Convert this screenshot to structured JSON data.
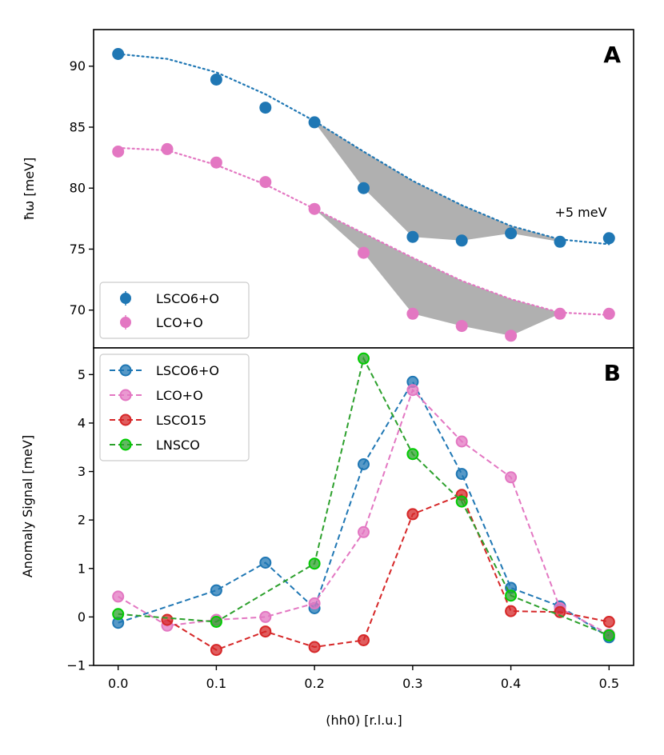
{
  "colors": {
    "lsco6": "#1f77b4",
    "lco": "#e377c2",
    "lsco15": "#d62728",
    "lnsco": "#2ca02c",
    "lnsco_edge": "#00cc00",
    "shade": "#b0b0b0"
  },
  "chart_data": [
    {
      "type": "scatter",
      "panel": "A",
      "ylabel": "ħω [meV]",
      "xlim": [
        -0.025,
        0.525
      ],
      "ylim": [
        66.9,
        93.0
      ],
      "yticks": [
        70,
        75,
        80,
        85,
        90
      ],
      "ytick_labels": [
        "70",
        "75",
        "80",
        "85",
        "90"
      ],
      "annotation": "+5 meV",
      "legend_position": "lower-left",
      "series": [
        {
          "name": "LSCO6+O",
          "color_key": "lsco6",
          "x": [
            0.0,
            0.1,
            0.15,
            0.2,
            0.25,
            0.3,
            0.35,
            0.4,
            0.45,
            0.5
          ],
          "y": [
            91.0,
            88.9,
            86.6,
            85.4,
            80.0,
            76.0,
            75.7,
            76.3,
            75.6,
            75.9
          ],
          "fit_x": [
            0.0,
            0.05,
            0.1,
            0.15,
            0.2,
            0.25,
            0.3,
            0.35,
            0.4,
            0.45,
            0.5
          ],
          "fit_y": [
            91.0,
            90.6,
            89.5,
            87.7,
            85.5,
            83.0,
            80.6,
            78.6,
            76.9,
            75.8,
            75.4
          ]
        },
        {
          "name": "LCO+O",
          "color_key": "lco",
          "x": [
            0.0,
            0.05,
            0.1,
            0.15,
            0.2,
            0.25,
            0.3,
            0.35,
            0.4,
            0.45,
            0.5
          ],
          "y": [
            83.0,
            83.2,
            82.1,
            80.5,
            78.3,
            74.7,
            69.7,
            68.7,
            67.9,
            69.7,
            69.7
          ],
          "fit_x": [
            0.0,
            0.05,
            0.1,
            0.15,
            0.2,
            0.25,
            0.3,
            0.35,
            0.4,
            0.45,
            0.5
          ],
          "fit_y": [
            83.3,
            83.1,
            81.9,
            80.3,
            78.3,
            76.3,
            74.3,
            72.4,
            70.9,
            69.8,
            69.6
          ]
        }
      ],
      "shaded_regions": [
        {
          "series": "LSCO6+O",
          "points_x": [
            0.2,
            0.25,
            0.3,
            0.35,
            0.4,
            0.45
          ],
          "points_y": [
            85.4,
            80.0,
            76.0,
            75.7,
            76.3,
            75.6
          ]
        },
        {
          "series": "LCO+O",
          "points_x": [
            0.2,
            0.25,
            0.3,
            0.35,
            0.4,
            0.45
          ],
          "points_y": [
            78.3,
            74.7,
            69.7,
            68.7,
            67.9,
            69.7
          ]
        }
      ]
    },
    {
      "type": "line",
      "panel": "B",
      "xlabel": "(hh0) [r.l.u.]",
      "ylabel": "Anomaly Signal [meV]",
      "xlim": [
        -0.025,
        0.525
      ],
      "ylim": [
        -1.0,
        5.55
      ],
      "xticks": [
        0.0,
        0.1,
        0.2,
        0.3,
        0.4,
        0.5
      ],
      "xtick_labels": [
        "0.0",
        "0.1",
        "0.2",
        "0.3",
        "0.4",
        "0.5"
      ],
      "yticks": [
        -1,
        0,
        1,
        2,
        3,
        4,
        5
      ],
      "ytick_labels": [
        "−1",
        "0",
        "1",
        "2",
        "3",
        "4",
        "5"
      ],
      "legend_position": "upper-left",
      "series": [
        {
          "name": "LSCO6+O",
          "color_key": "lsco6",
          "x": [
            0.0,
            0.1,
            0.15,
            0.2,
            0.25,
            0.3,
            0.35,
            0.4,
            0.45,
            0.5
          ],
          "y": [
            -0.12,
            0.55,
            1.12,
            0.18,
            3.15,
            4.85,
            2.95,
            0.6,
            0.22,
            -0.42
          ]
        },
        {
          "name": "LCO+O",
          "color_key": "lco",
          "x": [
            0.0,
            0.05,
            0.1,
            0.15,
            0.2,
            0.25,
            0.3,
            0.35,
            0.4,
            0.45,
            0.5
          ],
          "y": [
            0.42,
            -0.18,
            -0.06,
            0.0,
            0.28,
            1.75,
            4.68,
            3.62,
            2.88,
            0.18,
            -0.36
          ]
        },
        {
          "name": "LSCO15",
          "color_key": "lsco15",
          "x": [
            0.05,
            0.1,
            0.15,
            0.2,
            0.25,
            0.3,
            0.35,
            0.4,
            0.45,
            0.5
          ],
          "y": [
            -0.06,
            -0.68,
            -0.3,
            -0.62,
            -0.48,
            2.12,
            2.52,
            0.12,
            0.1,
            -0.1
          ]
        },
        {
          "name": "LNSCO",
          "color_key": "lnsco",
          "x": [
            0.0,
            0.1,
            0.2,
            0.25,
            0.3,
            0.35,
            0.4,
            0.5
          ],
          "y": [
            0.06,
            -0.1,
            1.1,
            5.33,
            3.36,
            2.38,
            0.44,
            -0.38
          ]
        }
      ]
    }
  ]
}
